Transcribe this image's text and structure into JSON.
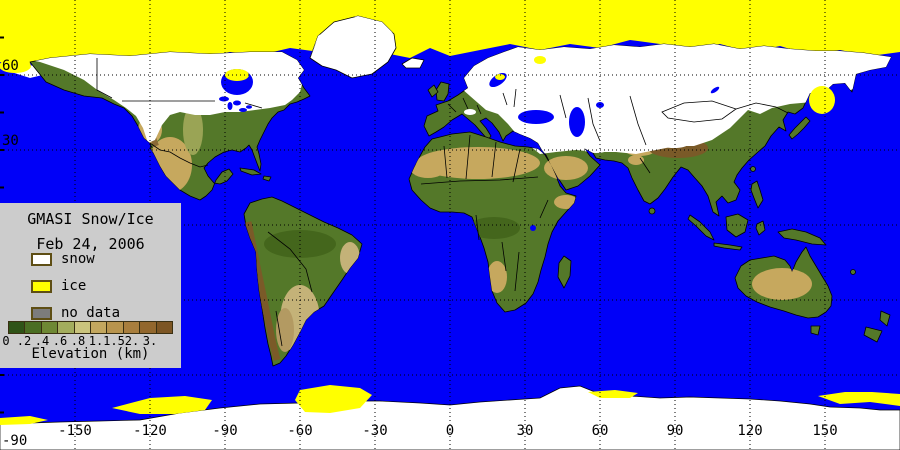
{
  "legend": {
    "title": "GMASI Snow/Ice",
    "date": "Feb 24, 2006",
    "items": [
      {
        "name": "snow",
        "label": "snow",
        "color": "#ffffff"
      },
      {
        "name": "ice",
        "label": "ice",
        "color": "#ffff00"
      },
      {
        "name": "no-data",
        "label": "no data",
        "color": "#7c7c7c"
      }
    ],
    "colorbar": {
      "title": "Elevation (km)",
      "tick_labels": [
        "0",
        ".2",
        ".4",
        ".6",
        ".8",
        "1.",
        "1.5",
        "2.",
        "3."
      ],
      "segment_colors": [
        "#2f5317",
        "#4a6e23",
        "#6e8834",
        "#a3ad5d",
        "#cac47d",
        "#c3a75e",
        "#b8944d",
        "#a87e3d",
        "#92672d",
        "#7c5523"
      ]
    }
  },
  "axes": {
    "lon_tick_labels": [
      "-150",
      "-120",
      "-90",
      "-60",
      "-30",
      "0",
      "30",
      "60",
      "90",
      "120",
      "150"
    ],
    "lat_tick_labels": [
      "60",
      "30",
      "-90"
    ]
  },
  "colors": {
    "ocean": "#0000f8",
    "ice": "#ffff00",
    "snow": "#ffffff",
    "land": "#547829",
    "grid": "#000000",
    "legend_bg": "#cccccc",
    "swatch_border": "#5e4e14",
    "label_text": "#000000"
  }
}
